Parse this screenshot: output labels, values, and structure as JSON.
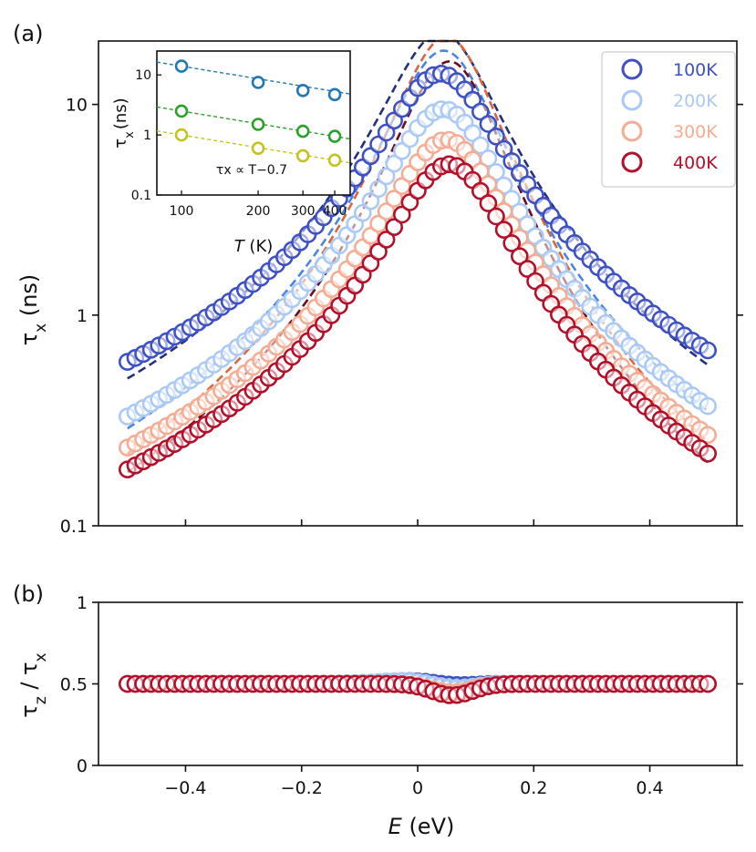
{
  "chart_data": [
    {
      "panel_label": "(a)",
      "type": "scatter",
      "ylabel": "τx (ns)",
      "yscale": "log",
      "xlim": [
        -0.55,
        0.55
      ],
      "ylim": [
        0.1,
        20
      ],
      "yticks": [
        {
          "value": 0.1,
          "label": "0.1"
        },
        {
          "value": 1,
          "label": "1"
        },
        {
          "value": 10,
          "label": "10"
        }
      ],
      "xticks": [
        -0.4,
        -0.2,
        0,
        0.2,
        0.4
      ],
      "legend_position": "top-right",
      "series": [
        {
          "name": "100K",
          "color": "#3d51c4",
          "fit_color": "#26317a",
          "peak_E": 0.04,
          "peak_tau": 14,
          "left_tau": 0.6,
          "right_tau": 0.68,
          "fit_peak": 22,
          "fit_left": 0.5,
          "fit_right": 0.58
        },
        {
          "name": "200K",
          "color": "#aac9f5",
          "fit_color": "#4a86e0",
          "peak_E": 0.045,
          "peak_tau": 9.5,
          "left_tau": 0.33,
          "right_tau": 0.37,
          "fit_peak": 18,
          "fit_left": 0.29,
          "fit_right": 0.35
        },
        {
          "name": "300K",
          "color": "#f4ad93",
          "fit_color": "#d8663e",
          "peak_E": 0.05,
          "peak_tau": 6.8,
          "left_tau": 0.235,
          "right_tau": 0.27,
          "fit_peak": 21,
          "fit_left": 0.22,
          "fit_right": 0.25
        },
        {
          "name": "400K",
          "color": "#b3102a",
          "fit_color": "#6e0a1e",
          "peak_E": 0.055,
          "peak_tau": 5.2,
          "left_tau": 0.185,
          "right_tau": 0.22,
          "fit_peak": 16,
          "fit_left": 0.18,
          "fit_right": 0.2
        }
      ],
      "x_range": [
        -0.5,
        0.5
      ],
      "points_per_series": 75
    },
    {
      "panel_label": "(b)",
      "type": "scatter",
      "ylabel": "τz / τx",
      "xlabel": "E (eV)",
      "xlim": [
        -0.55,
        0.55
      ],
      "ylim": [
        0,
        1
      ],
      "yticks": [
        {
          "value": 0,
          "label": "0"
        },
        {
          "value": 0.5,
          "label": "0.5"
        },
        {
          "value": 1,
          "label": "1"
        }
      ],
      "xticks": [
        {
          "value": -0.4,
          "label": "−0.4"
        },
        {
          "value": -0.2,
          "label": "−0.2"
        },
        {
          "value": 0,
          "label": "0"
        },
        {
          "value": 0.2,
          "label": "0.2"
        },
        {
          "value": 0.4,
          "label": "0.4"
        }
      ],
      "baseline": 0.5,
      "dip_E": 0.06,
      "dip_min": 0.43,
      "series_colors": [
        "#3d51c4",
        "#aac9f5",
        "#f4ad93",
        "#b3102a"
      ]
    },
    {
      "panel_label": "inset",
      "type": "scatter",
      "xlabel": "T (K)",
      "ylabel": "τx (ns)",
      "xscale": "log",
      "yscale": "log",
      "xlim": [
        80,
        460
      ],
      "ylim": [
        0.1,
        25
      ],
      "xticks": [
        {
          "value": 100,
          "label": "100"
        },
        {
          "value": 200,
          "label": "200"
        },
        {
          "value": 300,
          "label": "300"
        },
        {
          "value": 400,
          "label": "400"
        }
      ],
      "yticks": [
        {
          "value": 0.1,
          "label": "0.1"
        },
        {
          "value": 1,
          "label": "1"
        },
        {
          "value": 10,
          "label": "10"
        }
      ],
      "annotation": "τx ∝ T−0.7",
      "exponent": -0.7,
      "series": [
        {
          "color": "#2178b4",
          "T": [
            100,
            200,
            300,
            400
          ],
          "tau": [
            14,
            7.5,
            5.5,
            4.7
          ]
        },
        {
          "color": "#2ca02c",
          "T": [
            100,
            200,
            300,
            400
          ],
          "tau": [
            2.5,
            1.5,
            1.15,
            0.95
          ]
        },
        {
          "color": "#c3c41f",
          "T": [
            100,
            200,
            300,
            400
          ],
          "tau": [
            1.0,
            0.6,
            0.45,
            0.38
          ]
        }
      ]
    }
  ]
}
